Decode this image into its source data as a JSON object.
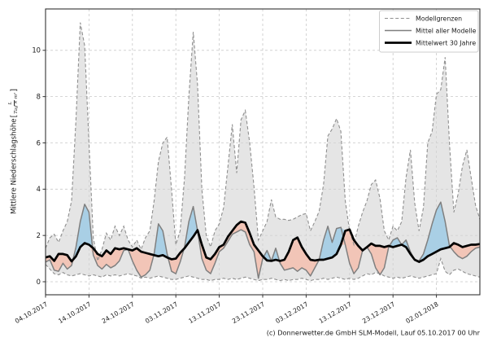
{
  "caption": "(c) Donnerwetter.de GmbH SLM-Modell, Lauf 05.10.2017 00 Uhr",
  "ylabel_parts": {
    "prefix": "Mittlere Niederschlagshöhe",
    "open_bracket": "[",
    "numerator": "L",
    "denominator": "Tag × m²",
    "close_bracket": "]"
  },
  "chart_data": {
    "type": "line",
    "title": "",
    "xlabel": "",
    "ylabel": "Mittlere Niederschlagshöhe [L/(Tag × m²)]",
    "legend": [
      "Modellgrenzen",
      "Mittel aller Modelle",
      "Mittelwert 30 Jahre"
    ],
    "legend_position": "upper right",
    "grid": true,
    "ylim": [
      -0.56,
      11.79
    ],
    "yticks": [
      0,
      2,
      4,
      6,
      8,
      10
    ],
    "x_tick_days": [
      0,
      10,
      20,
      30,
      40,
      50,
      60,
      70,
      80,
      90
    ],
    "x_tick_labels": [
      "04.10.2017",
      "14.10.2017",
      "24.10.2017",
      "03.11.2017",
      "13.11.2017",
      "23.11.2017",
      "03.12.2017",
      "13.12.2017",
      "23.12.2017",
      "02.01.2018"
    ],
    "x_days_total": 100,
    "colors": {
      "envelope_fill": "#d4d4d4",
      "above_normal_fill": "#a9cfe5",
      "below_normal_fill": "#f2c5b7",
      "bound_line": "#8f8f8f",
      "model_mean_line": "#7f7f7f",
      "climate_mean_line": "#000000",
      "grid": "#c9c9c9",
      "border": "#333333"
    },
    "series": [
      {
        "name": "Modellgrenzen (oben)",
        "values": [
          1.45,
          1.9,
          2.05,
          1.7,
          2.2,
          2.6,
          3.5,
          7.0,
          11.2,
          10.2,
          6.0,
          1.9,
          0.9,
          1.4,
          2.1,
          1.8,
          2.4,
          2.0,
          2.4,
          1.8,
          1.5,
          1.8,
          1.4,
          1.9,
          2.2,
          3.5,
          5.2,
          6.0,
          6.25,
          4.0,
          1.6,
          2.2,
          4.5,
          8.0,
          10.8,
          8.5,
          4.0,
          2.0,
          1.5,
          2.2,
          2.5,
          3.2,
          5.0,
          6.8,
          4.7,
          7.0,
          7.4,
          6.0,
          4.1,
          1.8,
          2.2,
          2.6,
          3.55,
          2.8,
          2.7,
          2.7,
          2.65,
          2.7,
          2.8,
          2.9,
          2.95,
          2.2,
          2.6,
          3.05,
          4.2,
          6.3,
          6.6,
          7.05,
          6.5,
          3.5,
          2.2,
          1.6,
          2.4,
          3.0,
          3.5,
          4.2,
          4.4,
          3.6,
          2.2,
          1.8,
          2.4,
          2.2,
          2.6,
          4.5,
          5.7,
          3.4,
          2.2,
          3.2,
          6.0,
          6.5,
          8.1,
          8.3,
          9.7,
          6.0,
          3.0,
          3.8,
          5.0,
          5.7,
          4.5,
          3.3,
          2.7
        ]
      },
      {
        "name": "Modellgrenzen (unten)",
        "values": [
          0.75,
          0.55,
          0.35,
          0.3,
          0.4,
          0.3,
          0.25,
          0.3,
          0.35,
          0.3,
          0.25,
          0.3,
          0.25,
          0.2,
          0.3,
          0.25,
          0.3,
          0.25,
          0.3,
          0.35,
          0.3,
          0.25,
          0.15,
          0.2,
          0.15,
          0.2,
          0.25,
          0.2,
          0.15,
          0.1,
          0.1,
          0.15,
          0.2,
          0.25,
          0.2,
          0.15,
          0.1,
          0.1,
          0.05,
          0.1,
          0.1,
          0.15,
          0.1,
          0.15,
          0.1,
          0.15,
          0.2,
          0.15,
          0.1,
          0.05,
          0.1,
          0.1,
          0.15,
          0.1,
          0.05,
          0.1,
          0.05,
          0.1,
          0.1,
          0.15,
          0.1,
          0.05,
          0.1,
          0.1,
          0.15,
          0.1,
          0.15,
          0.2,
          0.15,
          0.1,
          0.15,
          0.1,
          0.15,
          0.25,
          0.35,
          0.3,
          0.4,
          0.35,
          0.25,
          0.2,
          0.15,
          0.2,
          0.15,
          0.2,
          0.25,
          0.2,
          0.15,
          0.2,
          0.25,
          0.3,
          0.35,
          1.0,
          0.45,
          0.3,
          0.5,
          0.55,
          0.45,
          0.35,
          0.3,
          0.25,
          0.2
        ]
      },
      {
        "name": "Mittel aller Modelle",
        "values": [
          0.85,
          0.95,
          0.5,
          0.45,
          0.8,
          0.55,
          0.7,
          1.5,
          2.6,
          3.35,
          3.0,
          1.15,
          0.7,
          0.55,
          0.75,
          0.6,
          0.7,
          0.9,
          1.35,
          1.4,
          0.9,
          0.5,
          0.2,
          0.3,
          0.5,
          1.2,
          2.5,
          2.2,
          1.2,
          0.45,
          0.35,
          0.85,
          1.5,
          2.6,
          3.25,
          2.2,
          1.0,
          0.5,
          0.35,
          0.8,
          1.3,
          1.45,
          1.75,
          2.05,
          2.15,
          2.25,
          2.15,
          1.6,
          1.3,
          0.15,
          1.0,
          1.35,
          0.9,
          1.45,
          0.8,
          0.5,
          0.55,
          0.6,
          0.45,
          0.6,
          0.5,
          0.25,
          0.6,
          0.95,
          1.8,
          2.4,
          1.7,
          2.3,
          2.35,
          1.6,
          0.8,
          0.35,
          0.6,
          1.35,
          1.5,
          1.2,
          0.6,
          0.3,
          0.6,
          1.5,
          1.8,
          1.9,
          1.6,
          1.8,
          1.3,
          0.95,
          0.9,
          1.2,
          1.8,
          2.5,
          3.1,
          3.44,
          2.6,
          1.55,
          1.3,
          1.1,
          1.0,
          1.1,
          1.3,
          1.45,
          1.5
        ]
      },
      {
        "name": "Mittelwert 30 Jahre",
        "values": [
          1.05,
          1.1,
          0.9,
          1.2,
          1.2,
          1.15,
          0.88,
          1.1,
          1.5,
          1.67,
          1.6,
          1.45,
          1.2,
          1.1,
          1.35,
          1.2,
          1.45,
          1.4,
          1.45,
          1.4,
          1.35,
          1.45,
          1.3,
          1.25,
          1.2,
          1.15,
          1.1,
          1.15,
          1.05,
          0.97,
          1.0,
          1.25,
          1.45,
          1.7,
          1.95,
          2.23,
          1.6,
          1.05,
          0.97,
          1.2,
          1.5,
          1.6,
          1.95,
          2.2,
          2.45,
          2.6,
          2.55,
          2.1,
          1.6,
          1.35,
          1.1,
          0.92,
          0.9,
          0.95,
          0.9,
          0.95,
          1.3,
          1.8,
          1.91,
          1.5,
          1.2,
          0.95,
          0.92,
          0.95,
          0.95,
          1.0,
          1.05,
          1.2,
          1.6,
          2.2,
          2.26,
          1.8,
          1.55,
          1.35,
          1.5,
          1.65,
          1.55,
          1.55,
          1.5,
          1.55,
          1.5,
          1.55,
          1.6,
          1.5,
          1.2,
          0.95,
          0.86,
          0.95,
          1.1,
          1.2,
          1.3,
          1.4,
          1.45,
          1.5,
          1.67,
          1.6,
          1.5,
          1.55,
          1.6,
          1.6,
          1.63
        ]
      }
    ]
  }
}
